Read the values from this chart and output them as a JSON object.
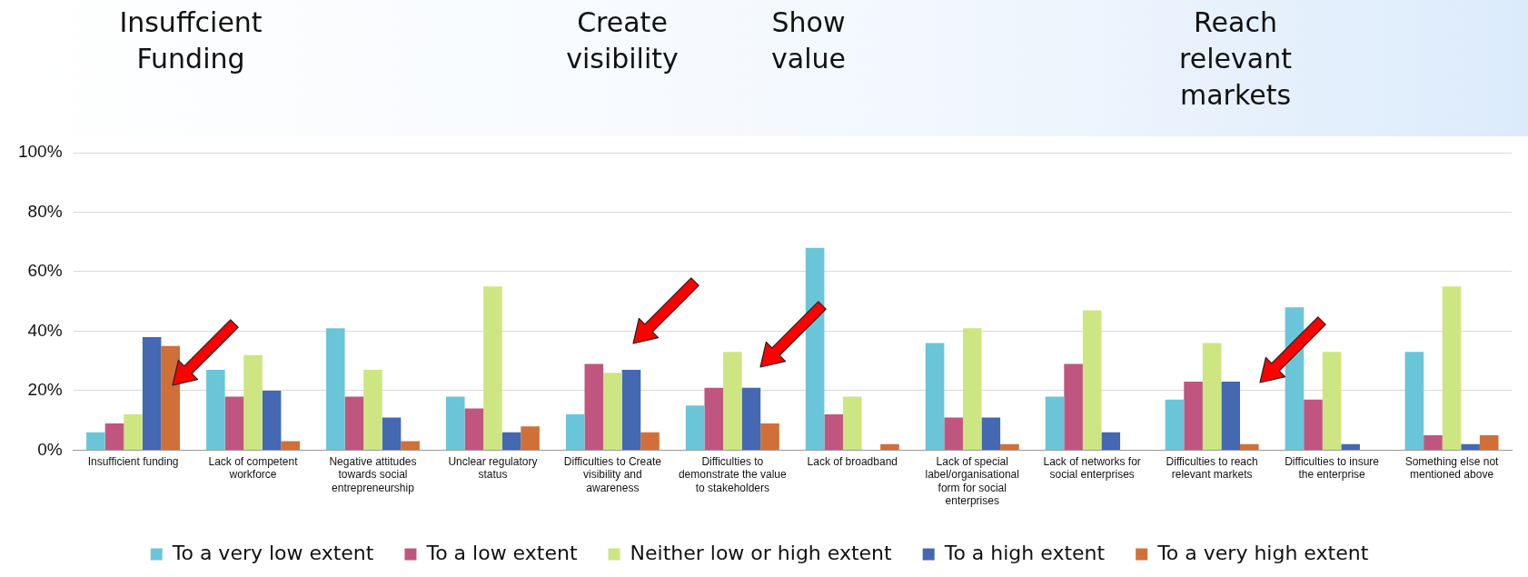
{
  "chart_data": {
    "type": "bar",
    "categories": [
      "Insufficient funding",
      "Lack of competent workforce",
      "Negative attitudes towards social entrepreneurship",
      "Unclear regulatory status",
      "Difficulties to Create visibility and awareness",
      "Difficulties to demonstrate the value to stakeholders",
      "Lack of broadband",
      "Lack of special label/organisational form for social enterprises",
      "Lack of networks for social enterprises",
      "Difficulties to reach relevant markets",
      "Difficulties to insure the enterprise",
      "Something else not mentioned above"
    ],
    "series": [
      {
        "name": "To a very low extent",
        "color": "#6bc5d8",
        "values": [
          6,
          27,
          41,
          18,
          12,
          15,
          68,
          36,
          18,
          17,
          48,
          33
        ]
      },
      {
        "name": "To a low extent",
        "color": "#c0567f",
        "values": [
          9,
          18,
          18,
          14,
          29,
          21,
          12,
          11,
          29,
          23,
          17,
          5
        ]
      },
      {
        "name": "Neither low or high extent",
        "color": "#cde682",
        "values": [
          12,
          32,
          27,
          55,
          26,
          33,
          18,
          41,
          47,
          36,
          33,
          55
        ]
      },
      {
        "name": "To a high extent",
        "color": "#4468b1",
        "values": [
          38,
          20,
          11,
          6,
          27,
          21,
          null,
          11,
          6,
          23,
          2,
          2
        ]
      },
      {
        "name": "To a very high extent",
        "color": "#d07038",
        "values": [
          35,
          3,
          3,
          8,
          6,
          9,
          2,
          2,
          null,
          2,
          null,
          5
        ]
      }
    ],
    "ylim": [
      0,
      100
    ],
    "yticks": [
      {
        "value": 0,
        "label": "0%"
      },
      {
        "value": 20,
        "label": "20%"
      },
      {
        "value": 40,
        "label": "40%"
      },
      {
        "value": 60,
        "label": "60%"
      },
      {
        "value": 80,
        "label": "80%"
      },
      {
        "value": 100,
        "label": "100%"
      }
    ],
    "grid": "y",
    "legend": "bottom",
    "annotations": [
      "Insuffcient Funding",
      "Create visibility",
      "Show value",
      "Reach relevant markets"
    ]
  }
}
